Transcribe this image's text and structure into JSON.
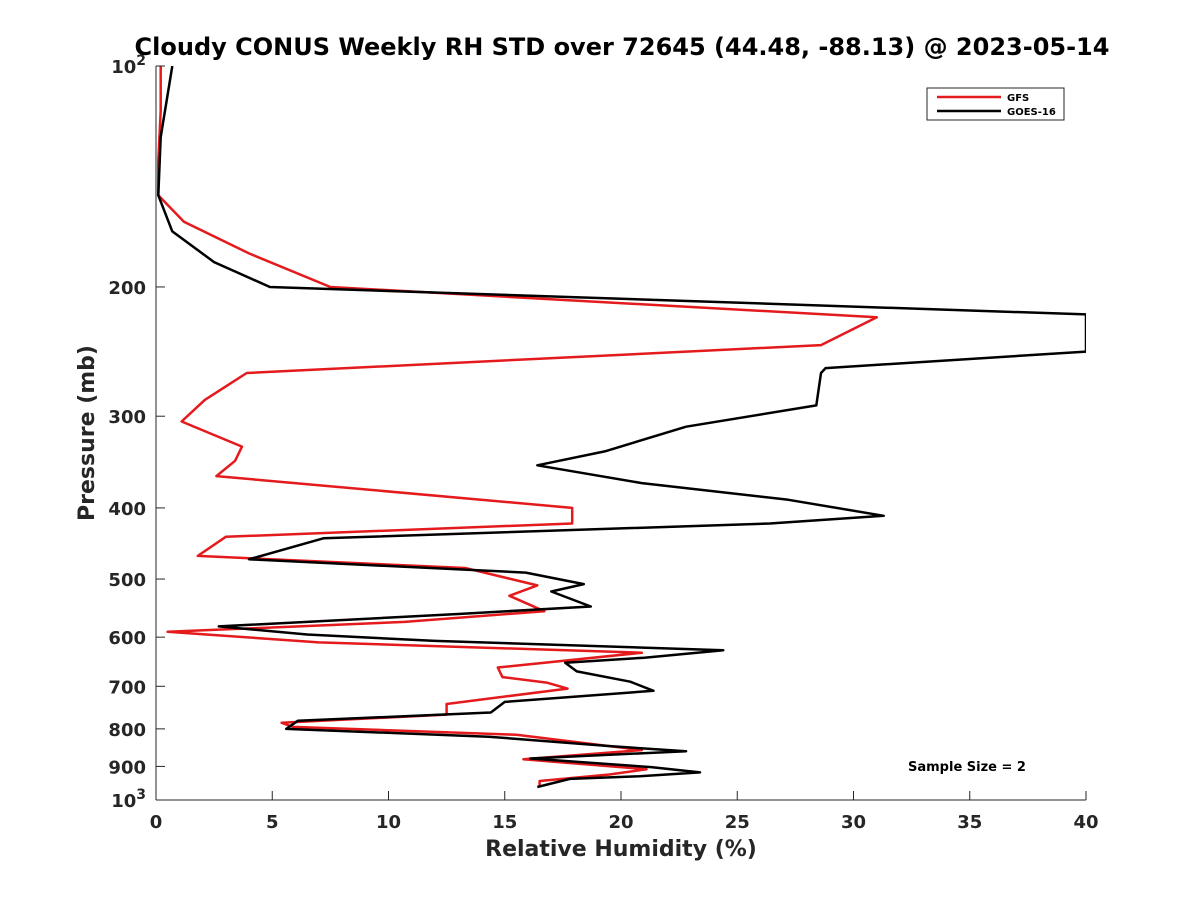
{
  "chart_data": {
    "type": "line",
    "title": "Cloudy CONUS Weekly RH STD over 72645 (44.48, -88.13) @ 2023-05-14",
    "xlabel": "Relative Humidity (%)",
    "ylabel": "Pressure (mb)",
    "xlim": [
      0,
      40
    ],
    "ylim": [
      100,
      1000
    ],
    "y_scale": "log",
    "y_reversed": true,
    "x_ticks": [
      0,
      5,
      10,
      15,
      20,
      25,
      30,
      35,
      40
    ],
    "y_ticks": [
      {
        "value": 100,
        "base": "10",
        "exp": "2"
      },
      {
        "value": 200,
        "label": "200"
      },
      {
        "value": 300,
        "label": "300"
      },
      {
        "value": 400,
        "label": "400"
      },
      {
        "value": 500,
        "label": "500"
      },
      {
        "value": 600,
        "label": "600"
      },
      {
        "value": 700,
        "label": "700"
      },
      {
        "value": 800,
        "label": "800"
      },
      {
        "value": 900,
        "label": "900"
      },
      {
        "value": 1000,
        "base": "10",
        "exp": "3"
      }
    ],
    "grid": false,
    "legend_position": "top-right",
    "annotation": "Sample Size = 2",
    "series": [
      {
        "name": "GFS",
        "color": "#e41a1c",
        "points": [
          [
            0.2,
            100
          ],
          [
            0.2,
            115
          ],
          [
            0.1,
            135
          ],
          [
            0.1,
            150
          ],
          [
            1.2,
            163
          ],
          [
            4,
            180
          ],
          [
            7.5,
            200
          ],
          [
            31,
            220
          ],
          [
            28.6,
            240
          ],
          [
            3.9,
            262
          ],
          [
            2.1,
            285
          ],
          [
            1.1,
            305
          ],
          [
            3.7,
            330
          ],
          [
            3.4,
            345
          ],
          [
            2.6,
            362
          ],
          [
            17.9,
            400
          ],
          [
            17.9,
            420
          ],
          [
            3,
            438
          ],
          [
            1.8,
            465
          ],
          [
            13.3,
            483
          ],
          [
            16.4,
            510
          ],
          [
            15.2,
            527
          ],
          [
            16.7,
            553
          ],
          [
            10.7,
            572
          ],
          [
            0.5,
            590
          ],
          [
            7,
            610
          ],
          [
            20.9,
            630
          ],
          [
            14.7,
            660
          ],
          [
            14.9,
            680
          ],
          [
            16.8,
            692
          ],
          [
            17.7,
            705
          ],
          [
            12.5,
            740
          ],
          [
            12.5,
            765
          ],
          [
            5.4,
            785
          ],
          [
            5.9,
            795
          ],
          [
            15.5,
            815
          ],
          [
            20.9,
            855
          ],
          [
            15.8,
            880
          ],
          [
            21.1,
            908
          ],
          [
            19.5,
            923
          ],
          [
            16.5,
            942
          ],
          [
            16.5,
            958
          ]
        ]
      },
      {
        "name": "GOES-16",
        "color": "#000000",
        "points": [
          [
            0.7,
            100
          ],
          [
            0.2,
            125
          ],
          [
            0.1,
            150
          ],
          [
            0.7,
            168
          ],
          [
            2.5,
            185
          ],
          [
            4.9,
            200
          ],
          [
            40,
            218
          ],
          [
            40,
            245
          ],
          [
            28.8,
            258
          ],
          [
            28.6,
            262
          ],
          [
            28.4,
            290
          ],
          [
            22.8,
            310
          ],
          [
            19.3,
            335
          ],
          [
            16.4,
            350
          ],
          [
            20.9,
            370
          ],
          [
            27.2,
            390
          ],
          [
            31.3,
            410
          ],
          [
            26.4,
            420
          ],
          [
            7.2,
            440
          ],
          [
            4,
            470
          ],
          [
            15.9,
            490
          ],
          [
            18.4,
            508
          ],
          [
            17,
            520
          ],
          [
            18.7,
            545
          ],
          [
            13,
            558
          ],
          [
            2.7,
            580
          ],
          [
            6.5,
            595
          ],
          [
            12,
            607
          ],
          [
            24.4,
            625
          ],
          [
            21,
            640
          ],
          [
            17.6,
            650
          ],
          [
            18.1,
            668
          ],
          [
            20.4,
            690
          ],
          [
            21.4,
            710
          ],
          [
            15,
            735
          ],
          [
            14.4,
            760
          ],
          [
            6.1,
            780
          ],
          [
            5.6,
            800
          ],
          [
            14.3,
            820
          ],
          [
            19.6,
            845
          ],
          [
            22.8,
            858
          ],
          [
            16.1,
            878
          ],
          [
            21.3,
            902
          ],
          [
            23.4,
            917
          ],
          [
            20.8,
            928
          ],
          [
            17.8,
            936
          ],
          [
            16.4,
            960
          ]
        ]
      }
    ]
  }
}
